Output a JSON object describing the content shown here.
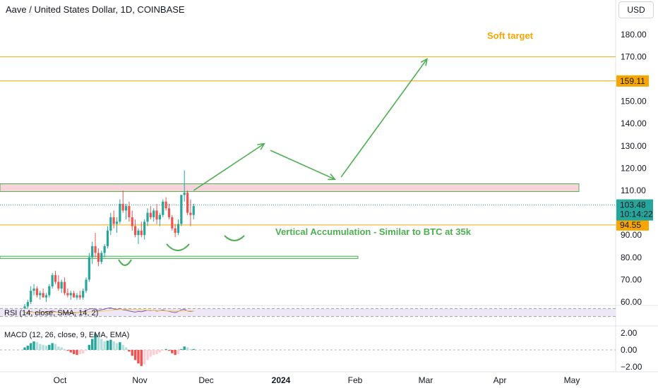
{
  "header": {
    "title": "Aave / United States Dollar, 1D, COINBASE",
    "currency": "USD"
  },
  "colors": {
    "up": "#26a69a",
    "down": "#ef5350",
    "level": "#f7a600",
    "annotation": "#4caf50",
    "soft_target": "#f7a600",
    "zone_fill": "#f8d3dc"
  },
  "chart_data": [
    {
      "type": "candlestick",
      "title": "Aave / United States Dollar, 1D, COINBASE",
      "xlabel": "",
      "ylabel": "",
      "ylim": [
        55,
        188
      ],
      "x_ticks": [
        "Oct",
        "Nov",
        "Dec",
        "2024",
        "Feb",
        "Mar",
        "Apr",
        "May"
      ],
      "y_ticks": [
        "180.00",
        "170.00",
        "160.00",
        "150.00",
        "140.00",
        "130.00",
        "120.00",
        "110.00",
        "100.00",
        "90.00",
        "80.00",
        "70.00",
        "60.00"
      ],
      "candles": [
        {
          "o": 57,
          "h": 59,
          "l": 56,
          "c": 58
        },
        {
          "o": 58,
          "h": 61,
          "l": 57,
          "c": 60
        },
        {
          "o": 60,
          "h": 67,
          "l": 59,
          "c": 65
        },
        {
          "o": 65,
          "h": 68,
          "l": 63,
          "c": 66
        },
        {
          "o": 66,
          "h": 67,
          "l": 62,
          "c": 63
        },
        {
          "o": 63,
          "h": 65,
          "l": 61,
          "c": 64
        },
        {
          "o": 64,
          "h": 66,
          "l": 62,
          "c": 62
        },
        {
          "o": 62,
          "h": 64,
          "l": 60,
          "c": 63
        },
        {
          "o": 63,
          "h": 68,
          "l": 62,
          "c": 67
        },
        {
          "o": 67,
          "h": 73,
          "l": 66,
          "c": 72
        },
        {
          "o": 72,
          "h": 74,
          "l": 68,
          "c": 69
        },
        {
          "o": 69,
          "h": 72,
          "l": 65,
          "c": 66
        },
        {
          "o": 66,
          "h": 70,
          "l": 64,
          "c": 69
        },
        {
          "o": 69,
          "h": 71,
          "l": 63,
          "c": 64
        },
        {
          "o": 64,
          "h": 66,
          "l": 62,
          "c": 63
        },
        {
          "o": 63,
          "h": 65,
          "l": 61,
          "c": 64
        },
        {
          "o": 64,
          "h": 65,
          "l": 62,
          "c": 62
        },
        {
          "o": 62,
          "h": 64,
          "l": 61,
          "c": 63
        },
        {
          "o": 63,
          "h": 65,
          "l": 61,
          "c": 62
        },
        {
          "o": 62,
          "h": 66,
          "l": 61,
          "c": 65
        },
        {
          "o": 65,
          "h": 71,
          "l": 64,
          "c": 70
        },
        {
          "o": 70,
          "h": 82,
          "l": 69,
          "c": 80
        },
        {
          "o": 80,
          "h": 87,
          "l": 77,
          "c": 85
        },
        {
          "o": 85,
          "h": 91,
          "l": 80,
          "c": 82
        },
        {
          "o": 82,
          "h": 84,
          "l": 76,
          "c": 78
        },
        {
          "o": 78,
          "h": 83,
          "l": 77,
          "c": 82
        },
        {
          "o": 82,
          "h": 86,
          "l": 80,
          "c": 85
        },
        {
          "o": 85,
          "h": 94,
          "l": 84,
          "c": 92
        },
        {
          "o": 92,
          "h": 100,
          "l": 90,
          "c": 98
        },
        {
          "o": 98,
          "h": 101,
          "l": 93,
          "c": 95
        },
        {
          "o": 95,
          "h": 98,
          "l": 91,
          "c": 96
        },
        {
          "o": 96,
          "h": 106,
          "l": 95,
          "c": 104
        },
        {
          "o": 104,
          "h": 110,
          "l": 100,
          "c": 101
        },
        {
          "o": 101,
          "h": 104,
          "l": 97,
          "c": 103
        },
        {
          "o": 103,
          "h": 105,
          "l": 96,
          "c": 98
        },
        {
          "o": 98,
          "h": 101,
          "l": 92,
          "c": 94
        },
        {
          "o": 94,
          "h": 97,
          "l": 89,
          "c": 90
        },
        {
          "o": 90,
          "h": 93,
          "l": 86,
          "c": 92
        },
        {
          "o": 92,
          "h": 96,
          "l": 89,
          "c": 90
        },
        {
          "o": 90,
          "h": 97,
          "l": 88,
          "c": 96
        },
        {
          "o": 96,
          "h": 102,
          "l": 94,
          "c": 100
        },
        {
          "o": 100,
          "h": 103,
          "l": 97,
          "c": 98
        },
        {
          "o": 98,
          "h": 102,
          "l": 96,
          "c": 101
        },
        {
          "o": 101,
          "h": 104,
          "l": 95,
          "c": 97
        },
        {
          "o": 97,
          "h": 100,
          "l": 94,
          "c": 99
        },
        {
          "o": 99,
          "h": 106,
          "l": 98,
          "c": 105
        },
        {
          "o": 105,
          "h": 107,
          "l": 101,
          "c": 102
        },
        {
          "o": 102,
          "h": 104,
          "l": 97,
          "c": 98
        },
        {
          "o": 98,
          "h": 99,
          "l": 92,
          "c": 93
        },
        {
          "o": 93,
          "h": 95,
          "l": 89,
          "c": 91
        },
        {
          "o": 91,
          "h": 97,
          "l": 90,
          "c": 95
        },
        {
          "o": 95,
          "h": 108,
          "l": 94,
          "c": 108
        },
        {
          "o": 108,
          "h": 119,
          "l": 105,
          "c": 109
        },
        {
          "o": 109,
          "h": 110,
          "l": 99,
          "c": 100
        },
        {
          "o": 100,
          "h": 106,
          "l": 94,
          "c": 99
        },
        {
          "o": 99,
          "h": 104,
          "l": 97,
          "c": 103
        }
      ],
      "levels": [
        {
          "value": 170.0,
          "label": ""
        },
        {
          "value": 159.11,
          "label": "159.11"
        },
        {
          "value": 94.55,
          "label": "94.55"
        }
      ],
      "current_price": {
        "value": 103.48,
        "label": "103.48",
        "countdown": "10:14:22"
      },
      "zones": [
        {
          "top": 113.0,
          "bottom": 109.5
        },
        {
          "top": 80.5,
          "bottom": 79.5
        }
      ],
      "annotations": [
        {
          "text": "Soft target"
        },
        {
          "text": "Vertical Accumulation - Similar to BTC at 35k"
        }
      ],
      "projection_path": [
        {
          "x_index": 55,
          "y": 110.0
        },
        {
          "x_index": 78,
          "y": 131.0
        },
        {
          "x_index": 80,
          "y": 128.0
        },
        {
          "x_index": 101,
          "y": 115.0
        },
        {
          "x_index": 103,
          "y": 116.0
        },
        {
          "x_index": 131,
          "y": 169.0
        }
      ]
    },
    {
      "type": "line",
      "title": "RSI (14, close, SMA, 14, 2)",
      "ylim": [
        0,
        100
      ],
      "band": [
        30,
        70
      ],
      "values": [
        48,
        52,
        55,
        51,
        47,
        50,
        49,
        53,
        56,
        58,
        54,
        50,
        52,
        49,
        47,
        50,
        48,
        50,
        51,
        55,
        60,
        68,
        70,
        66,
        60,
        64,
        67,
        72,
        74,
        68,
        66,
        71,
        64,
        62,
        58,
        55,
        52,
        56,
        54,
        58,
        62,
        60,
        62,
        57,
        60,
        63,
        59,
        56,
        52,
        50,
        55,
        64,
        66,
        58,
        56,
        58
      ]
    },
    {
      "type": "bar",
      "title": "MACD (12, 26, close, 9, EMA, EMA)",
      "ylim": [
        -2.4,
        2.4
      ],
      "y_ticks": [
        "2.00",
        "0.00",
        "−2.00"
      ],
      "histogram": [
        0.3,
        0.5,
        0.8,
        1.0,
        0.9,
        0.7,
        0.6,
        0.5,
        0.6,
        0.8,
        0.7,
        0.4,
        0.3,
        0.1,
        -0.1,
        -0.3,
        -0.5,
        -0.6,
        -0.5,
        -0.4,
        -0.1,
        0.6,
        1.3,
        1.9,
        1.7,
        1.3,
        1.0,
        1.1,
        1.2,
        1.0,
        0.8,
        0.9,
        0.6,
        0.3,
        -0.2,
        -0.7,
        -1.2,
        -1.6,
        -1.9,
        -1.7,
        -1.2,
        -0.8,
        -0.6,
        -0.5,
        -0.3,
        -0.1,
        0.1,
        -0.1,
        -0.4,
        -0.6,
        -0.5,
        0.1,
        0.4,
        0.3,
        0.1,
        0.1
      ]
    }
  ]
}
